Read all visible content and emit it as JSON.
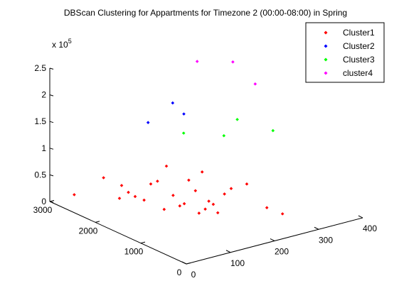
{
  "chart_data": {
    "type": "scatter",
    "title": "DBScan Clustering for Appartments for Timezone 2 (00:00-08:00) in Spring",
    "scale_label": "x 10",
    "scale_exponent": "5",
    "xlabel": "",
    "ylabel": "",
    "zlabel": "",
    "x_ticks": [
      "0",
      "100",
      "200",
      "300",
      "400"
    ],
    "y_ticks": [
      "0",
      "1000",
      "2000",
      "3000"
    ],
    "z_ticks": [
      "0",
      "0.5",
      "1",
      "1.5",
      "2",
      "2.5"
    ],
    "legend_position": "top-right",
    "grid": false,
    "view": "3d",
    "series": [
      {
        "name": "Cluster1",
        "color": "#ff0000",
        "points": [
          [
            40,
            2850,
            0.1
          ],
          [
            60,
            2400,
            0.55
          ],
          [
            70,
            2100,
            0.5
          ],
          [
            75,
            2000,
            0.4
          ],
          [
            80,
            1900,
            0.35
          ],
          [
            90,
            1800,
            0.3
          ],
          [
            60,
            2050,
            0.3
          ],
          [
            100,
            1750,
            0.6
          ],
          [
            110,
            1700,
            0.65
          ],
          [
            120,
            1600,
            0.95
          ],
          [
            130,
            1550,
            0.4
          ],
          [
            140,
            1500,
            0.2
          ],
          [
            145,
            1450,
            0.25
          ],
          [
            150,
            1400,
            0.7
          ],
          [
            160,
            1350,
            0.5
          ],
          [
            170,
            1300,
            0.85
          ],
          [
            180,
            1250,
            0.3
          ],
          [
            185,
            1200,
            0.25
          ],
          [
            200,
            1100,
            0.45
          ],
          [
            210,
            1050,
            0.55
          ],
          [
            230,
            900,
            0.65
          ],
          [
            260,
            750,
            0.2
          ],
          [
            280,
            600,
            0.1
          ],
          [
            190,
            1150,
            0.1
          ],
          [
            165,
            1320,
            0.08
          ],
          [
            175,
            1280,
            0.15
          ],
          [
            120,
            1650,
            0.12
          ]
        ]
      },
      {
        "name": "Cluster2",
        "color": "#0000ff",
        "points": [
          [
            130,
            2100,
            1.55
          ],
          [
            160,
            1850,
            1.95
          ],
          [
            175,
            1750,
            1.75
          ]
        ]
      },
      {
        "name": "Cluster3",
        "color": "#00ff00",
        "points": [
          [
            190,
            1900,
            1.3
          ],
          [
            240,
            1500,
            1.3
          ],
          [
            260,
            1400,
            1.6
          ],
          [
            310,
            1100,
            1.4
          ]
        ]
      },
      {
        "name": "cluster4",
        "color": "#ff00ff",
        "points": [
          [
            200,
            1700,
            2.7
          ],
          [
            250,
            1400,
            2.7
          ],
          [
            280,
            1200,
            2.3
          ]
        ]
      }
    ]
  }
}
